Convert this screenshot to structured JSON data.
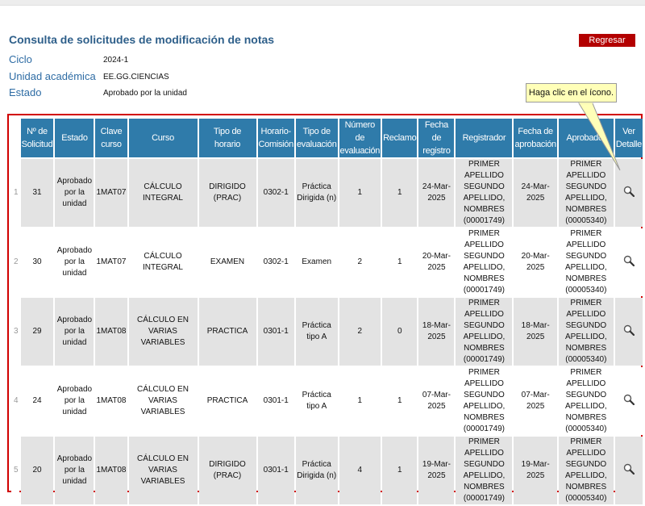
{
  "page": {
    "title": "Consulta de solicitudes de modificación de notas",
    "back_button": "Regresar"
  },
  "filters": {
    "ciclo_label": "Ciclo",
    "ciclo_value": "2024-1",
    "unidad_label": "Unidad académica",
    "unidad_value": "EE.GG.CIENCIAS",
    "estado_label": "Estado",
    "estado_value": "Aprobado por la unidad"
  },
  "tooltip": {
    "text": "Haga clic en el ícono."
  },
  "table": {
    "headers": [
      "Nº de Solicitud",
      "Estado",
      "Clave curso",
      "Curso",
      "Tipo de horario",
      "Horario-Comisión",
      "Tipo de evaluación",
      "Número de evaluación",
      "Reclamo",
      "Fecha de registro",
      "Registrador",
      "Fecha de aprobación",
      "Aprobador",
      "Ver Detalle"
    ],
    "rows": [
      {
        "index": "1",
        "solicitud": "31",
        "estado": "Aprobado por la unidad",
        "clave": "1MAT07",
        "curso": "CÁLCULO INTEGRAL",
        "tipo_horario": "DIRIGIDO (PRAC)",
        "horario": "0302-1",
        "tipo_eval": "Práctica Dirigida (n)",
        "num_eval": "1",
        "reclamo": "1",
        "fecha_registro": "24-Mar-2025",
        "registrador": "PRIMER APELLIDO SEGUNDO APELLIDO, NOMBRES (00001749)",
        "fecha_aprobacion": "24-Mar-2025",
        "aprobador": "PRIMER APELLIDO SEGUNDO APELLIDO, NOMBRES (00005340)"
      },
      {
        "index": "2",
        "solicitud": "30",
        "estado": "Aprobado por la unidad",
        "clave": "1MAT07",
        "curso": "CÁLCULO INTEGRAL",
        "tipo_horario": "EXAMEN",
        "horario": "0302-1",
        "tipo_eval": "Examen",
        "num_eval": "2",
        "reclamo": "1",
        "fecha_registro": "20-Mar-2025",
        "registrador": "PRIMER APELLIDO SEGUNDO APELLIDO, NOMBRES (00001749)",
        "fecha_aprobacion": "20-Mar-2025",
        "aprobador": "PRIMER APELLIDO SEGUNDO APELLIDO, NOMBRES (00005340)"
      },
      {
        "index": "3",
        "solicitud": "29",
        "estado": "Aprobado por la unidad",
        "clave": "1MAT08",
        "curso": "CÁLCULO EN VARIAS VARIABLES",
        "tipo_horario": "PRACTICA",
        "horario": "0301-1",
        "tipo_eval": "Práctica tipo A",
        "num_eval": "2",
        "reclamo": "0",
        "fecha_registro": "18-Mar-2025",
        "registrador": "PRIMER APELLIDO SEGUNDO APELLIDO, NOMBRES (00001749)",
        "fecha_aprobacion": "18-Mar-2025",
        "aprobador": "PRIMER APELLIDO SEGUNDO APELLIDO, NOMBRES (00005340)"
      },
      {
        "index": "4",
        "solicitud": "24",
        "estado": "Aprobado por la unidad",
        "clave": "1MAT08",
        "curso": "CÁLCULO EN VARIAS VARIABLES",
        "tipo_horario": "PRACTICA",
        "horario": "0301-1",
        "tipo_eval": "Práctica tipo A",
        "num_eval": "1",
        "reclamo": "1",
        "fecha_registro": "07-Mar-2025",
        "registrador": "PRIMER APELLIDO SEGUNDO APELLIDO, NOMBRES (00001749)",
        "fecha_aprobacion": "07-Mar-2025",
        "aprobador": "PRIMER APELLIDO SEGUNDO APELLIDO, NOMBRES (00005340)"
      },
      {
        "index": "5",
        "solicitud": "20",
        "estado": "Aprobado por la unidad",
        "clave": "1MAT08",
        "curso": "CÁLCULO EN VARIAS VARIABLES",
        "tipo_horario": "DIRIGIDO (PRAC)",
        "horario": "0301-1",
        "tipo_eval": "Práctica Dirigida (n)",
        "num_eval": "4",
        "reclamo": "1",
        "fecha_registro": "19-Mar-2025",
        "registrador": "PRIMER APELLIDO SEGUNDO APELLIDO, NOMBRES (00001749)",
        "fecha_aprobacion": "19-Mar-2025",
        "aprobador": "PRIMER APELLIDO SEGUNDO APELLIDO, NOMBRES (00005340)"
      }
    ]
  },
  "icons": {
    "detail": "magnifier-icon"
  },
  "colors": {
    "title": "#2e5f8a",
    "label": "#2e6ca4",
    "header_bg": "#2f7baa",
    "button_bg": "#b30000",
    "highlight_border": "#d10000",
    "tooltip_bg": "#ffffb8"
  }
}
